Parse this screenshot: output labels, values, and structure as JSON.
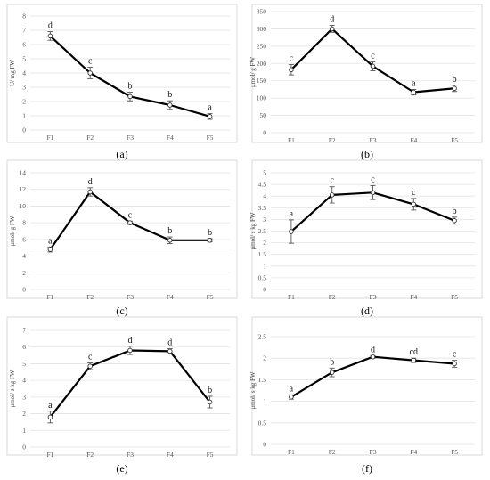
{
  "chart_data": [
    {
      "type": "line",
      "panel": "(a)",
      "ylabel": "U/ mg FW",
      "ylim": [
        0,
        8
      ],
      "ystep": 1,
      "categories": [
        "F1",
        "F2",
        "F3",
        "F4",
        "F5"
      ],
      "values": [
        6.6,
        4.0,
        2.35,
        1.75,
        0.95
      ],
      "errors": [
        0.3,
        0.4,
        0.3,
        0.3,
        0.2
      ],
      "letters": [
        "d",
        "c",
        "b",
        "b",
        "a"
      ]
    },
    {
      "type": "line",
      "panel": "(b)",
      "ylabel": "μmol/ g FW",
      "ylim": [
        0,
        350
      ],
      "ystep": 50,
      "categories": [
        "F1",
        "F2",
        "F3",
        "F4",
        "F5"
      ],
      "values": [
        182,
        300,
        192,
        117,
        128
      ],
      "errors": [
        15,
        10,
        13,
        8,
        9
      ],
      "letters": [
        "c",
        "d",
        "c",
        "a",
        "b"
      ]
    },
    {
      "type": "line",
      "panel": "(c)",
      "ylabel": "μmol/ g FW",
      "ylim": [
        0,
        14
      ],
      "ystep": 2,
      "categories": [
        "F1",
        "F2",
        "F3",
        "F4",
        "F5"
      ],
      "values": [
        4.8,
        11.7,
        8.0,
        5.9,
        5.9
      ],
      "errors": [
        0.3,
        0.5,
        0.2,
        0.4,
        0.2
      ],
      "letters": [
        "a",
        "d",
        "c",
        "b",
        "b"
      ]
    },
    {
      "type": "line",
      "panel": "(d)",
      "ylabel": "μmol/ s  kg FW",
      "ylim": [
        0,
        5
      ],
      "ystep": 0.5,
      "categories": [
        "F1",
        "F2",
        "F3",
        "F4",
        "F5"
      ],
      "values": [
        2.48,
        4.05,
        4.15,
        3.65,
        2.95
      ],
      "errors": [
        0.5,
        0.35,
        0.3,
        0.25,
        0.15
      ],
      "letters": [
        "a",
        "c",
        "c",
        "c",
        "b"
      ]
    },
    {
      "type": "line",
      "panel": "(e)",
      "ylabel": "μmol/ s  kg FW",
      "ylim": [
        0,
        7
      ],
      "ystep": 1,
      "categories": [
        "F1",
        "F2",
        "F3",
        "F4",
        "F5"
      ],
      "values": [
        1.8,
        4.85,
        5.8,
        5.75,
        2.7
      ],
      "errors": [
        0.35,
        0.2,
        0.25,
        0.15,
        0.35
      ],
      "letters": [
        "a",
        "c",
        "d",
        "d",
        "b"
      ]
    },
    {
      "type": "line",
      "panel": "(f)",
      "ylabel": "μmol/ s  kg FW",
      "ylim": [
        0,
        2.5
      ],
      "ystep": 0.5,
      "categories": [
        "F1",
        "F2",
        "F3",
        "F4",
        "F5"
      ],
      "values": [
        1.1,
        1.67,
        2.03,
        1.95,
        1.87
      ],
      "errors": [
        0.05,
        0.1,
        0.03,
        0.05,
        0.08
      ],
      "letters": [
        "a",
        "b",
        "d",
        "cd",
        "c"
      ]
    }
  ]
}
